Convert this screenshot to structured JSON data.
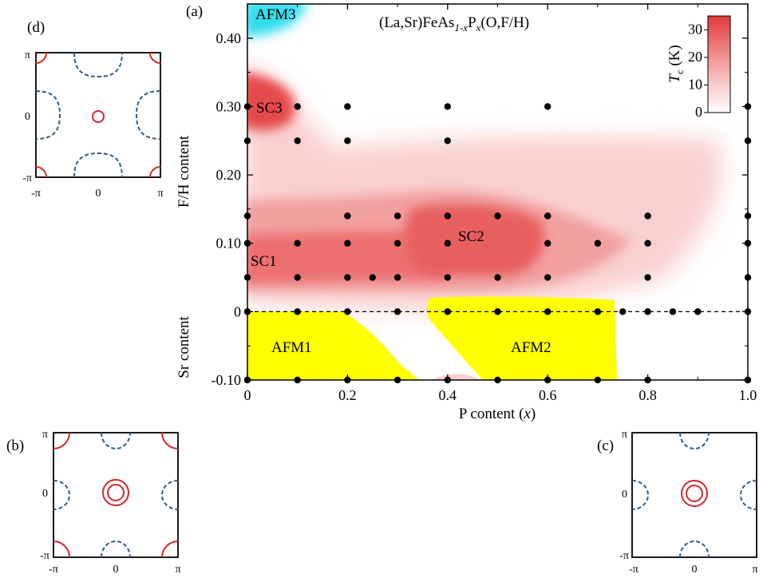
{
  "main_panel": {
    "panel_label": "(a)",
    "title": {
      "pre": "(La,Sr)FeAs",
      "sub1": "1-x",
      "mid": "P",
      "sub2": "x",
      "post": "(O,F/H)"
    },
    "xlabel": {
      "pre": "P content (",
      "var": "x",
      "post": ")"
    },
    "ylabel_upper": "F/H content",
    "ylabel_lower": "Sr content",
    "xticks": [
      "0",
      "0.2",
      "0.4",
      "0.6",
      "0.8",
      "1.0"
    ],
    "yticks": [
      "0.40",
      "0.30",
      "0.20",
      "0.10",
      "0",
      "-0.10"
    ],
    "region_labels": {
      "afm3": "AFM3",
      "sc3": "SC3",
      "sc2": "SC2",
      "sc1": "SC1",
      "afm1": "AFM1",
      "afm2": "AFM2"
    },
    "colorbar": {
      "label_var": "T",
      "label_sub": "c",
      "label_unit": " (K)",
      "ticks": [
        "30",
        "20",
        "10",
        "0"
      ],
      "range": [
        0,
        35
      ]
    },
    "colors": {
      "sc": "#e23a3a",
      "afm_yellow": "#ffff00",
      "afm_cyan": "#33ddee",
      "points": "#000000"
    }
  },
  "chart_data": {
    "type": "scatter",
    "title": "(La,Sr)FeAs1-xPx(O,F/H)",
    "xlabel": "P content (x)",
    "ylabel": "F/H content (upper) / Sr content (lower)",
    "xlim": [
      0,
      1.0
    ],
    "ylim": [
      -0.1,
      0.45
    ],
    "negative_y_means": "Sr content",
    "series": [
      {
        "points": [
          [
            0,
            0.3
          ],
          [
            0.1,
            0.3
          ],
          [
            0.2,
            0.3
          ],
          [
            0.4,
            0.3
          ],
          [
            0.6,
            0.3
          ],
          [
            1.0,
            0.3
          ],
          [
            0,
            0.25
          ],
          [
            0.1,
            0.25
          ],
          [
            0.2,
            0.25
          ],
          [
            0.4,
            0.25
          ],
          [
            1.0,
            0.25
          ],
          [
            0,
            0.14
          ],
          [
            0.2,
            0.14
          ],
          [
            0.3,
            0.14
          ],
          [
            0.4,
            0.14
          ],
          [
            0.5,
            0.14
          ],
          [
            0.6,
            0.14
          ],
          [
            0.8,
            0.14
          ],
          [
            1.0,
            0.14
          ],
          [
            0,
            0.1
          ],
          [
            0.1,
            0.1
          ],
          [
            0.2,
            0.1
          ],
          [
            0.3,
            0.1
          ],
          [
            0.4,
            0.1
          ],
          [
            0.6,
            0.1
          ],
          [
            0.7,
            0.1
          ],
          [
            0.8,
            0.1
          ],
          [
            1.0,
            0.1
          ],
          [
            0,
            0.05
          ],
          [
            0.1,
            0.05
          ],
          [
            0.2,
            0.05
          ],
          [
            0.25,
            0.05
          ],
          [
            0.3,
            0.05
          ],
          [
            0.4,
            0.05
          ],
          [
            0.5,
            0.05
          ],
          [
            0.6,
            0.05
          ],
          [
            0.8,
            0.05
          ],
          [
            1.0,
            0.05
          ],
          [
            0,
            0
          ],
          [
            0.1,
            0
          ],
          [
            0.2,
            0
          ],
          [
            0.3,
            0
          ],
          [
            0.4,
            0
          ],
          [
            0.5,
            0
          ],
          [
            0.6,
            0
          ],
          [
            0.7,
            0
          ],
          [
            0.75,
            0
          ],
          [
            0.8,
            0
          ],
          [
            0.85,
            0
          ],
          [
            0.9,
            0
          ],
          [
            1.0,
            0
          ],
          [
            0,
            -0.1
          ],
          [
            0.1,
            -0.1
          ],
          [
            0.2,
            -0.1
          ],
          [
            0.3,
            -0.1
          ],
          [
            0.4,
            -0.1
          ],
          [
            0.5,
            -0.1
          ],
          [
            0.6,
            -0.1
          ],
          [
            0.7,
            -0.1
          ],
          [
            0.8,
            -0.1
          ],
          [
            1.0,
            -0.1
          ]
        ]
      }
    ],
    "regions": [
      {
        "label": "AFM1",
        "color": "#ffff00"
      },
      {
        "label": "AFM2",
        "color": "#ffff00"
      },
      {
        "label": "AFM3",
        "color": "#33ddee"
      },
      {
        "label": "SC1",
        "color": "#e23a3a"
      },
      {
        "label": "SC2",
        "color": "#e23a3a"
      },
      {
        "label": "SC3",
        "color": "#e23a3a"
      }
    ],
    "colorbar_range": [
      0,
      35
    ]
  },
  "fermi_panels": [
    {
      "id": "d",
      "label": "(d)",
      "ytop": "π",
      "ymid": "0",
      "ybot": "-π",
      "xleft": "-π",
      "xmid": "0",
      "xright": "π",
      "rings": 1,
      "corner_arcs": "hole"
    },
    {
      "id": "b",
      "label": "(b)",
      "ytop": "π",
      "ymid": "0",
      "ybot": "-π",
      "xleft": "-π",
      "xmid": "0",
      "xright": "π",
      "rings": 2,
      "corner_arcs": "hole"
    },
    {
      "id": "c",
      "label": "(c)",
      "ytop": "π",
      "ymid": "0",
      "ybot": "-π",
      "xleft": "-π",
      "xmid": "0",
      "xright": "π",
      "rings": 2,
      "corner_arcs": "none"
    }
  ]
}
